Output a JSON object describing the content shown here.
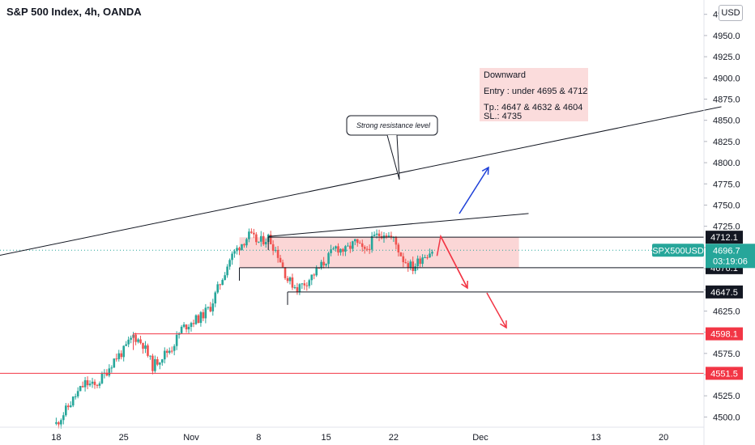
{
  "header": {
    "title": "S&P 500 Index, 4h, OANDA",
    "currency_button": "USD"
  },
  "annotation_note": {
    "line1": "Downward",
    "line2": "Entry : under 4695 & 4712",
    "line3": "Tp.: 4647 & 4632 & 4604",
    "line4": "SL.: 4735"
  },
  "callout": {
    "text": "Strong resistance level"
  },
  "symbol_tag": {
    "symbol": "SPX500USD",
    "price": "4696.7",
    "countdown": "03:19:06"
  },
  "level_tags": [
    {
      "label": "4712.1",
      "value": 4712.1,
      "color": "#131722"
    },
    {
      "label": "4676.1",
      "value": 4676.1,
      "color": "#131722"
    },
    {
      "label": "4647.5",
      "value": 4647.5,
      "color": "#131722"
    },
    {
      "label": "4598.1",
      "value": 4598.1,
      "color": "#f23645"
    },
    {
      "label": "4551.5",
      "value": 4551.5,
      "color": "#f23645"
    }
  ],
  "colors": {
    "up": "#26a69a",
    "down": "#ef5350",
    "resistance_zone": "#f8b4b4",
    "support_line": "#f23645",
    "blue_arrow": "#1e40d8",
    "red_arrow": "#f23645",
    "price_line": "#26a69a"
  },
  "chart_data": {
    "type": "candlestick",
    "y_axis": {
      "ylim": [
        4487,
        4990
      ],
      "ticks": [
        4975.0,
        4950.0,
        4925.0,
        4900.0,
        4875.0,
        4850.0,
        4825.0,
        4800.0,
        4775.0,
        4750.0,
        4725.0,
        4700.0,
        4675.0,
        4650.0,
        4625.0,
        4600.0,
        4575.0,
        4550.0,
        4525.0,
        4500.0
      ],
      "tick_labels": [
        "4975.0",
        "4950.0",
        "4925.0",
        "4900.0",
        "4875.0",
        "4850.0",
        "4825.0",
        "4800.0",
        "4775.0",
        "4750.0",
        "4725.0",
        "4700.0",
        "4675.0",
        "4650.0",
        "4625.0",
        "4600.0",
        "4575.0",
        "4550.0",
        "4525.0",
        "4500.0"
      ]
    },
    "x_axis": {
      "tick_labels": [
        "18",
        "25",
        "Nov",
        "8",
        "15",
        "22",
        "Dec",
        "13",
        "20"
      ],
      "tick_days": [
        -14,
        -7,
        0,
        7,
        14,
        21,
        30,
        42,
        49
      ]
    },
    "current_price": 4696.7,
    "price_path": [
      {
        "day": -14,
        "price": 4492
      },
      {
        "day": -13,
        "price": 4508
      },
      {
        "day": -12,
        "price": 4525
      },
      {
        "day": -11,
        "price": 4540
      },
      {
        "day": -10,
        "price": 4536
      },
      {
        "day": -9,
        "price": 4550
      },
      {
        "day": -8,
        "price": 4568
      },
      {
        "day": -7,
        "price": 4578
      },
      {
        "day": -6,
        "price": 4596
      },
      {
        "day": -5,
        "price": 4586
      },
      {
        "day": -4,
        "price": 4560
      },
      {
        "day": -3,
        "price": 4572
      },
      {
        "day": -2,
        "price": 4582
      },
      {
        "day": -1,
        "price": 4604
      },
      {
        "day": 0,
        "price": 4612
      },
      {
        "day": 1,
        "price": 4618
      },
      {
        "day": 2,
        "price": 4630
      },
      {
        "day": 3,
        "price": 4658
      },
      {
        "day": 4,
        "price": 4686
      },
      {
        "day": 5,
        "price": 4702
      },
      {
        "day": 6,
        "price": 4714
      },
      {
        "day": 7,
        "price": 4706
      },
      {
        "day": 8,
        "price": 4712
      },
      {
        "day": 9,
        "price": 4692
      },
      {
        "day": 10,
        "price": 4662
      },
      {
        "day": 11,
        "price": 4652
      },
      {
        "day": 12,
        "price": 4660
      },
      {
        "day": 13,
        "price": 4672
      },
      {
        "day": 14,
        "price": 4685
      },
      {
        "day": 15,
        "price": 4700
      },
      {
        "day": 16,
        "price": 4696
      },
      {
        "day": 17,
        "price": 4706
      },
      {
        "day": 18,
        "price": 4694
      },
      {
        "day": 19,
        "price": 4712
      },
      {
        "day": 20,
        "price": 4718
      },
      {
        "day": 21,
        "price": 4709
      },
      {
        "day": 22,
        "price": 4686
      },
      {
        "day": 23,
        "price": 4676
      },
      {
        "day": 24,
        "price": 4690
      },
      {
        "day": 25,
        "price": 4696.7
      }
    ],
    "resistance_zone": {
      "day_start": 5,
      "day_end": 34,
      "price_low": 4676,
      "price_high": 4712
    },
    "trend_lines": [
      {
        "name": "long-trend",
        "from": {
          "day": -30,
          "price": 4667
        },
        "to": {
          "day": 55,
          "price": 4866
        }
      },
      {
        "name": "upper-channel",
        "from": {
          "day": 8,
          "price": 4713
        },
        "to": {
          "day": 35,
          "price": 4740
        }
      }
    ],
    "horizontal_levels": [
      {
        "price": 4712.1,
        "day_start": 8,
        "color": "#131722"
      },
      {
        "price": 4676.1,
        "day_start": 5,
        "color": "#131722"
      },
      {
        "price": 4647.5,
        "day_start": 10,
        "color": "#131722"
      },
      {
        "price": 4598.1,
        "day_start": -6,
        "color": "#f23645"
      },
      {
        "price": 4551.5,
        "day_start": -30,
        "color": "#f23645"
      }
    ]
  }
}
